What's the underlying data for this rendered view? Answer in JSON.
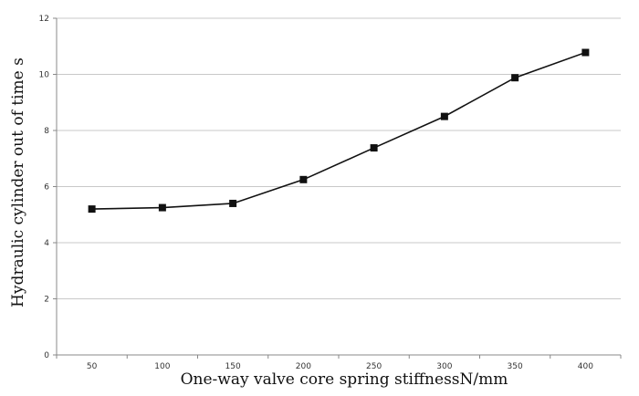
{
  "chart_data": {
    "type": "line",
    "title": "",
    "xlabel": "One-way valve core spring stiffnessN/mm",
    "ylabel": "Hydraulic cylinder out of time s",
    "categories": [
      "50",
      "100",
      "150",
      "200",
      "250",
      "300",
      "350",
      "400"
    ],
    "series": [
      {
        "values": [
          5.2,
          5.25,
          5.4,
          6.25,
          7.38,
          8.5,
          9.88,
          10.78
        ]
      }
    ],
    "ylim": [
      0,
      12
    ],
    "yticks": [
      "0",
      "2",
      "4",
      "6",
      "8",
      "10",
      "12"
    ],
    "grid": "horizontal",
    "legend": "none",
    "line_color": "#111111",
    "marker": "square",
    "grid_color": "#c8c8c8"
  }
}
